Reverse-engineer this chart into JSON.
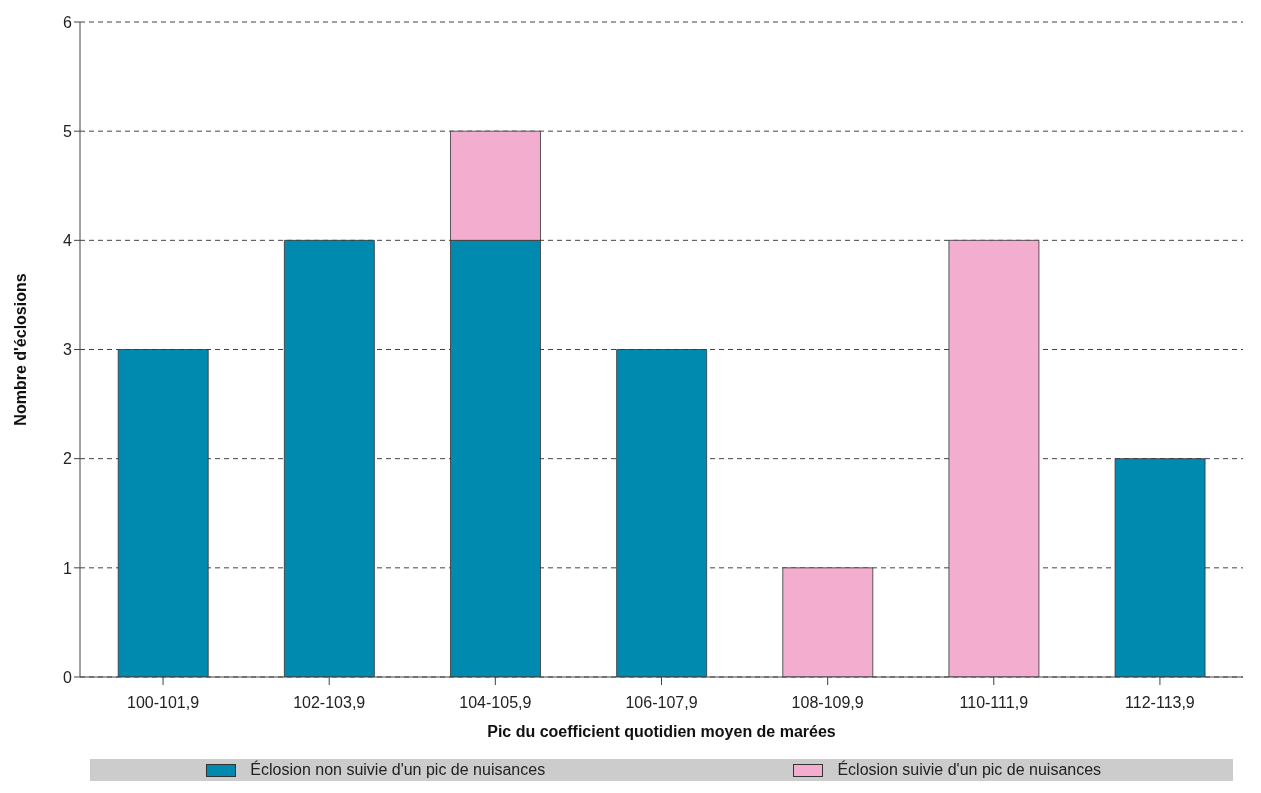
{
  "chart_data": {
    "type": "bar",
    "stacked": true,
    "xlabel": "Pic du coefficient quotidien moyen de marées",
    "ylabel": "Nombre d'éclosions",
    "categories": [
      "100-101,9",
      "102-103,9",
      "104-105,9",
      "106-107,9",
      "108-109,9",
      "110-111,9",
      "112-113,9"
    ],
    "series": [
      {
        "name": "Éclosion non suivie d'un pic de nuisances",
        "color": "#008ab0",
        "values": [
          3,
          4,
          4,
          3,
          null,
          null,
          2
        ]
      },
      {
        "name": "Éclosion suivie d'un pic de nuisances",
        "color": "#f3aecf",
        "values": [
          null,
          null,
          1,
          null,
          1,
          4,
          null
        ]
      }
    ],
    "ylim": [
      0,
      6
    ],
    "yticks": [
      0,
      1,
      2,
      3,
      4,
      5,
      6
    ],
    "grid": "y",
    "legend": "bottom"
  }
}
